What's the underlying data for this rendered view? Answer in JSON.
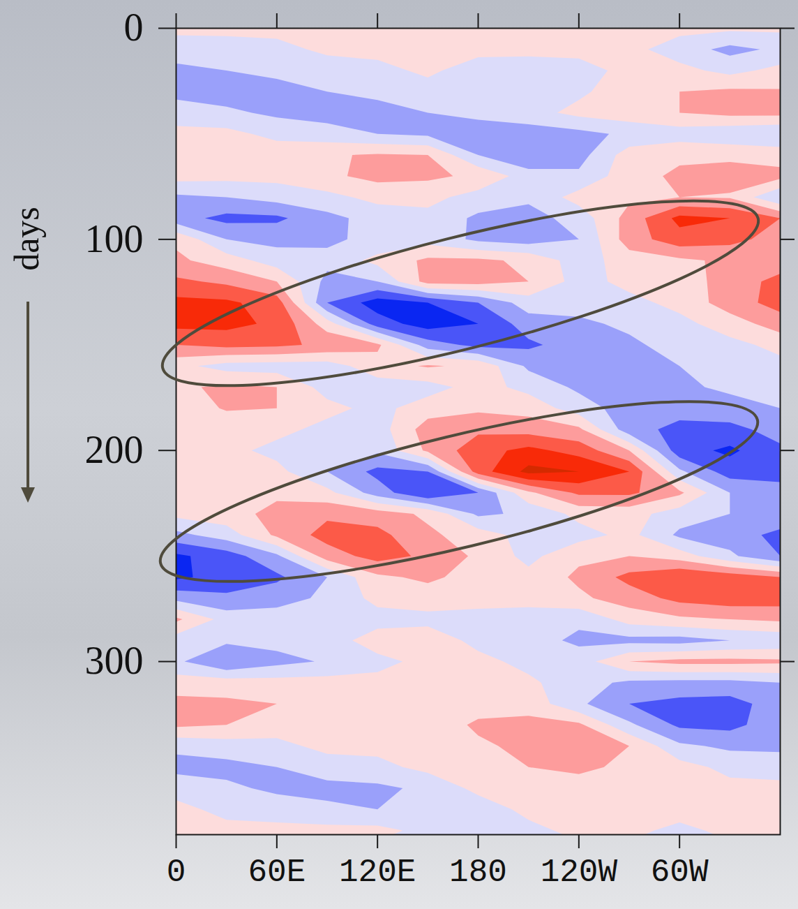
{
  "chart_data": {
    "type": "contour",
    "ylabel": "days",
    "x": [
      0,
      30,
      60,
      90,
      120,
      150,
      180,
      210,
      240,
      270,
      300,
      330,
      360
    ],
    "y": [
      0,
      10,
      20,
      30,
      40,
      50,
      60,
      70,
      80,
      90,
      100,
      110,
      120,
      130,
      140,
      150,
      160,
      170,
      180,
      190,
      200,
      210,
      220,
      230,
      240,
      250,
      260,
      270,
      280,
      290,
      300,
      310,
      320,
      330,
      340,
      350,
      360,
      370,
      380
    ],
    "values": [
      [
        0.3,
        0.3,
        0.3,
        0.3,
        0.3,
        0.3,
        0.3,
        0.3,
        0.3,
        0.3,
        0.3,
        0.2,
        0.2
      ],
      [
        -0.6,
        -0.5,
        -0.3,
        0.2,
        0.3,
        0.3,
        0.3,
        0.3,
        0.3,
        0.3,
        -0.5,
        -1.3,
        -0.8
      ],
      [
        -1.2,
        -1.0,
        -0.8,
        -0.5,
        -0.3,
        0.2,
        -0.5,
        -0.6,
        -0.4,
        0.3,
        0.3,
        -0.3,
        0.3
      ],
      [
        -1.3,
        -1.5,
        -1.3,
        -1.0,
        -0.8,
        -0.4,
        -0.4,
        -0.5,
        -0.2,
        0.6,
        1.0,
        1.2,
        1.1
      ],
      [
        -0.5,
        -0.8,
        -1.2,
        -1.4,
        -1.3,
        -1.0,
        -0.8,
        -0.4,
        0.3,
        0.6,
        1.0,
        1.3,
        1.3
      ],
      [
        0.3,
        0.3,
        -0.3,
        -0.6,
        -1.0,
        -1.2,
        -1.4,
        -1.5,
        -1.3,
        -0.8,
        -0.5,
        -0.8,
        -1.0
      ],
      [
        0.3,
        0.4,
        0.6,
        0.9,
        1.1,
        1.0,
        -1.0,
        -2.0,
        -1.4,
        0.5,
        0.8,
        0.8,
        0.6
      ],
      [
        0.4,
        0.3,
        0.3,
        0.8,
        1.3,
        1.2,
        0.8,
        -0.5,
        -0.8,
        0.6,
        1.2,
        1.4,
        1.3
      ],
      [
        -1.2,
        -1.0,
        -0.6,
        -0.3,
        0.3,
        0.3,
        -0.4,
        -0.8,
        0.4,
        0.8,
        1.0,
        0.9,
        -1.0
      ],
      [
        -1.6,
        -2.3,
        -2.2,
        -1.3,
        -0.6,
        -0.3,
        -1.2,
        -1.4,
        -0.6,
        1.4,
        3.3,
        3.0,
        2.0
      ],
      [
        0.8,
        -1.0,
        -1.3,
        -1.2,
        -0.7,
        -0.4,
        -1.2,
        -1.5,
        -1.0,
        1.5,
        2.6,
        2.3,
        1.6
      ],
      [
        1.2,
        0.5,
        -0.5,
        -0.7,
        0.3,
        1.2,
        1.2,
        0.8,
        -0.5,
        0.5,
        0.8,
        1.2,
        1.5
      ],
      [
        2.2,
        1.8,
        1.0,
        -1.3,
        -1.0,
        1.4,
        1.4,
        1.0,
        -0.4,
        0.3,
        0.4,
        1.5,
        2.3
      ],
      [
        3.3,
        3.2,
        2.5,
        -2.0,
        -3.5,
        -3.0,
        -2.0,
        -0.5,
        -0.6,
        -0.3,
        0.3,
        1.5,
        2.4
      ],
      [
        3.3,
        3.3,
        2.8,
        0.5,
        -2.5,
        -3.5,
        -3.0,
        -1.5,
        -1.2,
        -0.8,
        -0.3,
        0.5,
        1.5
      ],
      [
        2.0,
        2.3,
        2.2,
        1.8,
        1.2,
        -1.5,
        -2.3,
        -2.2,
        -1.5,
        -1.2,
        -0.6,
        -0.3,
        0.3
      ],
      [
        0.3,
        -0.4,
        -0.5,
        -0.5,
        0.6,
        1.1,
        0.8,
        -1.2,
        -1.5,
        -1.4,
        -1.0,
        -0.5,
        -0.3
      ],
      [
        0.8,
        1.2,
        1.0,
        -0.4,
        -0.5,
        -0.4,
        0.4,
        -0.3,
        -1.2,
        -1.3,
        -1.2,
        -0.8,
        -0.5
      ],
      [
        0.4,
        1.1,
        1.0,
        0.3,
        -0.3,
        0.5,
        0.8,
        0.6,
        -0.5,
        -1.5,
        -1.6,
        -1.4,
        -1.0
      ],
      [
        0.3,
        0.3,
        0.3,
        -0.3,
        -0.5,
        1.5,
        1.8,
        1.6,
        1.2,
        -1.6,
        -2.3,
        -2.3,
        -1.6
      ],
      [
        0.3,
        0.3,
        -0.3,
        -0.5,
        -0.8,
        1.2,
        2.6,
        3.3,
        2.6,
        1.0,
        -2.6,
        -3.2,
        -2.2
      ],
      [
        0.4,
        0.5,
        0.3,
        -1.0,
        -2.3,
        -2.0,
        2.5,
        4.3,
        4.0,
        3.0,
        -0.8,
        -2.5,
        -2.5
      ],
      [
        0.5,
        0.8,
        0.8,
        0.3,
        -1.5,
        -3.0,
        -2.0,
        0.8,
        2.2,
        2.2,
        1.2,
        -1.0,
        -1.5
      ],
      [
        0.3,
        0.6,
        1.3,
        1.8,
        1.5,
        0.8,
        -1.2,
        -0.8,
        0.3,
        0.4,
        -0.5,
        -1.0,
        -1.2
      ],
      [
        -1.3,
        -0.5,
        1.2,
        2.4,
        2.3,
        1.2,
        0.5,
        -0.4,
        -0.4,
        0.3,
        -1.2,
        -1.5,
        -2.3
      ],
      [
        -3.2,
        -2.5,
        -1.2,
        1.5,
        2.4,
        1.8,
        0.8,
        -0.3,
        0.8,
        1.0,
        0.5,
        -0.8,
        -2.0
      ],
      [
        -3.2,
        -2.6,
        -2.2,
        -1.0,
        0.8,
        1.2,
        0.6,
        0.3,
        1.2,
        2.3,
        3.0,
        2.6,
        2.0
      ],
      [
        -1.3,
        -1.8,
        -1.4,
        -0.8,
        0.3,
        0.5,
        0.3,
        0.3,
        0.8,
        1.5,
        2.3,
        2.6,
        2.5
      ],
      [
        1.2,
        -0.4,
        -0.5,
        -0.5,
        -0.4,
        -0.3,
        -0.3,
        -0.4,
        -0.8,
        0.4,
        0.8,
        1.0,
        1.2
      ],
      [
        -0.5,
        -0.8,
        -0.7,
        -0.5,
        0.5,
        0.6,
        -0.3,
        -0.6,
        -1.2,
        -1.3,
        -1.4,
        -1.0,
        -0.8
      ],
      [
        -0.8,
        -2.0,
        -1.3,
        -0.9,
        -0.3,
        0.3,
        0.3,
        -0.3,
        -0.5,
        1.0,
        1.3,
        1.3,
        1.2
      ],
      [
        0.5,
        0.5,
        0.4,
        0.4,
        0.3,
        0.3,
        0.3,
        0.2,
        -0.6,
        -1.2,
        -1.3,
        -1.3,
        -1.0
      ],
      [
        1.3,
        1.2,
        1.0,
        0.5,
        0.4,
        0.3,
        0.5,
        0.6,
        -0.8,
        -2.0,
        -2.3,
        -2.4,
        -1.5
      ],
      [
        1.2,
        1.0,
        0.5,
        0.3,
        0.3,
        0.3,
        1.2,
        1.3,
        1.2,
        -0.8,
        -2.2,
        -2.3,
        -1.4
      ],
      [
        -0.8,
        -0.5,
        -0.3,
        0.3,
        0.3,
        0.3,
        0.8,
        1.3,
        1.3,
        1.0,
        -0.8,
        -1.2,
        -1.2
      ],
      [
        -1.3,
        -1.3,
        -1.0,
        -0.5,
        -0.3,
        0.3,
        0.5,
        1.0,
        1.2,
        0.8,
        0.4,
        -0.3,
        -0.5
      ],
      [
        -0.4,
        -0.8,
        -1.2,
        -1.3,
        -1.2,
        -0.8,
        0.3,
        0.5,
        0.6,
        0.6,
        0.5,
        0.3,
        0.3
      ],
      [
        0.3,
        -0.3,
        -0.5,
        -0.8,
        -1.0,
        -1.0,
        -0.6,
        0.3,
        0.5,
        0.5,
        0.5,
        0.4,
        0.3
      ],
      [
        0.3,
        0.3,
        0.3,
        0.3,
        0.3,
        -0.3,
        -0.4,
        -0.3,
        0.3,
        0.3,
        -0.3,
        0.3,
        0.3
      ]
    ],
    "levels": [
      -3,
      -2,
      -1,
      0,
      1,
      2,
      3,
      4
    ],
    "colors": [
      "#0a26f2",
      "#4a55f8",
      "#9aa0fa",
      "#dcdcfa",
      "#fddcdc",
      "#fd9c9c",
      "#fc5a48",
      "#f82a08",
      "#d42a00"
    ],
    "xlim": [
      0,
      360
    ],
    "ylim": [
      0,
      382
    ],
    "xticks": [
      0,
      {
        "value": 60,
        "label": "60E"
      },
      {
        "value": 120,
        "label": "120E"
      },
      180,
      {
        "value": 240,
        "label": "120W"
      },
      {
        "value": 300,
        "label": "60W"
      }
    ],
    "yticks": [
      0,
      100,
      200,
      300
    ],
    "grid": false
  }
}
